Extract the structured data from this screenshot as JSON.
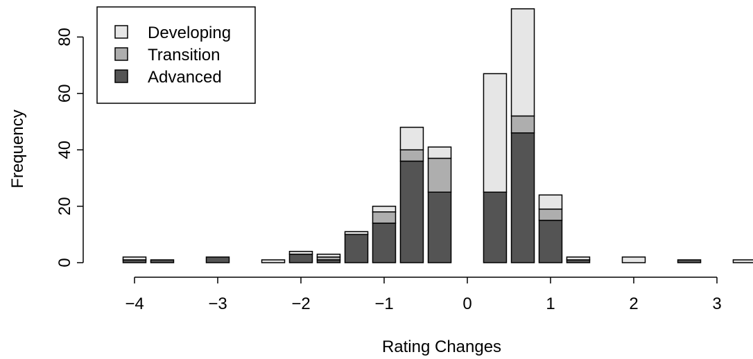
{
  "chart_data": {
    "type": "bar",
    "stacked": true,
    "title": "",
    "xlabel": "Rating Changes",
    "ylabel": "Frequency",
    "x": [
      -4,
      -3.667,
      -3.333,
      -3,
      -2.667,
      -2.333,
      -2,
      -1.667,
      -1.333,
      -1,
      -0.667,
      -0.333,
      0,
      0.333,
      0.667,
      1,
      1.333,
      1.667,
      2,
      2.333,
      2.667,
      3,
      3.333
    ],
    "x_ticks": [
      -4,
      -3,
      -2,
      -1,
      0,
      1,
      2,
      3
    ],
    "x_tick_labels": [
      "−4",
      "−3",
      "−2",
      "−1",
      "0",
      "1",
      "2",
      "3"
    ],
    "y_ticks": [
      0,
      20,
      40,
      60,
      80
    ],
    "y_tick_labels": [
      "0",
      "20",
      "40",
      "60",
      "80"
    ],
    "ylim": [
      0,
      90
    ],
    "grid": false,
    "legend_position": "top-left",
    "series": [
      {
        "name": "Advanced",
        "color": "#545454",
        "values": [
          1,
          1,
          0,
          2,
          0,
          0,
          3,
          1,
          10,
          14,
          36,
          25,
          0,
          25,
          46,
          15,
          1,
          0,
          0,
          0,
          1,
          0,
          0
        ]
      },
      {
        "name": "Transition",
        "color": "#aeaeae",
        "values": [
          0,
          0,
          0,
          0,
          0,
          0,
          0,
          1,
          0,
          4,
          4,
          12,
          0,
          0,
          6,
          4,
          0,
          0,
          0,
          0,
          0,
          0,
          0
        ]
      },
      {
        "name": "Developing",
        "color": "#e6e6e6",
        "values": [
          1,
          0,
          0,
          0,
          0,
          1,
          1,
          1,
          1,
          2,
          8,
          4,
          0,
          42,
          38,
          5,
          1,
          0,
          2,
          0,
          0,
          0,
          1
        ]
      }
    ],
    "legend_order": [
      "Developing",
      "Transition",
      "Advanced"
    ]
  }
}
